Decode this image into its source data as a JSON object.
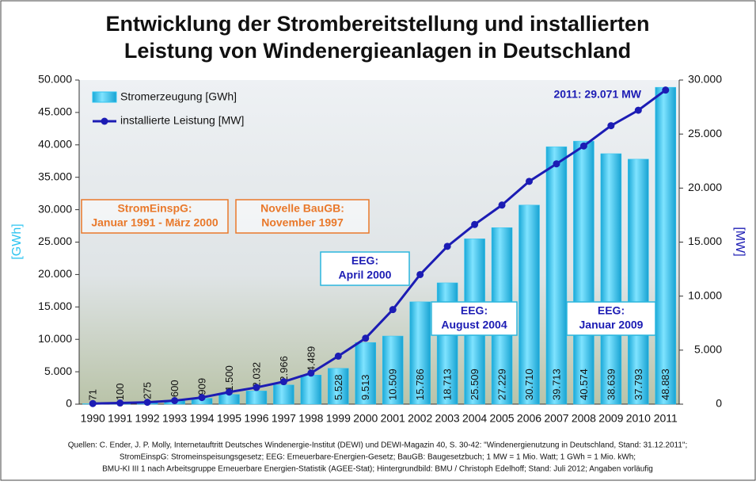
{
  "chart_data": {
    "type": "bar-line",
    "title_lines": [
      "Entwicklung der Strombereitstellung und installierten",
      "Leistung von Windenergieanlagen in Deutschland"
    ],
    "y_label": "[GWh]",
    "y2_label": "[MW]",
    "categories": [
      "1990",
      "1991",
      "1992",
      "1993",
      "1994",
      "1995",
      "1996",
      "1997",
      "1998",
      "1999",
      "2000",
      "2001",
      "2002",
      "2003",
      "2004",
      "2005",
      "2006",
      "2007",
      "2008",
      "2009",
      "2010",
      "2011"
    ],
    "series": [
      {
        "name": "Stromerzeugung [GWh]",
        "type": "bar",
        "color": "#2ec4f0",
        "values": [
          71,
          100,
          275,
          600,
          909,
          1500,
          2032,
          2966,
          4489,
          5528,
          9513,
          10509,
          15786,
          18713,
          25509,
          27229,
          30710,
          39713,
          40574,
          38639,
          37793,
          48883
        ],
        "value_labels": [
          "71",
          "100",
          "275",
          "600",
          "909",
          "1.500",
          "2.032",
          "2.966",
          "4.489",
          "5.528",
          "9.513",
          "10.509",
          "15.786",
          "18.713",
          "25.509",
          "27.229",
          "30.710",
          "39.713",
          "40.574",
          "38.639",
          "37.793",
          "48.883"
        ]
      },
      {
        "name": "installierte Leistung [MW]",
        "type": "line",
        "axis": "y2",
        "color": "#1c1cb4",
        "values": [
          56,
          106,
          174,
          326,
          618,
          1121,
          1546,
          2081,
          2875,
          4444,
          6104,
          8754,
          11994,
          14609,
          16629,
          18428,
          20622,
          22247,
          23897,
          25777,
          27204,
          29071
        ]
      }
    ],
    "ylim": [
      0,
      50000
    ],
    "yticks": [
      0,
      {
        "value": 5000,
        "label": "5.000"
      },
      {
        "value": 10000,
        "label": "10.000"
      },
      {
        "value": 15000,
        "label": "15.000"
      },
      {
        "value": 20000,
        "label": "20.000"
      },
      {
        "value": 25000,
        "label": "25.000"
      },
      {
        "value": 30000,
        "label": "30.000"
      },
      {
        "value": 35000,
        "label": "35.000"
      },
      {
        "value": 40000,
        "label": "40.000"
      },
      {
        "value": 45000,
        "label": "45.000"
      },
      {
        "value": 50000,
        "label": "50.000"
      }
    ],
    "y2lim": [
      0,
      30000
    ],
    "y2ticks": [
      0,
      {
        "value": 5000,
        "label": "5.000"
      },
      {
        "value": 10000,
        "label": "10.000"
      },
      {
        "value": 15000,
        "label": "15.000"
      },
      {
        "value": 20000,
        "label": "20.000"
      },
      {
        "value": 25000,
        "label": "25.000"
      },
      {
        "value": 30000,
        "label": "30.000"
      }
    ],
    "annotations": [
      {
        "lines": [
          "2011: 29.071 MW"
        ],
        "style": "plain"
      },
      {
        "lines": [
          "StromEinspG:",
          "Januar 1991 - März 2000"
        ],
        "style": "orange"
      },
      {
        "lines": [
          "Novelle BauGB:",
          "November 1997"
        ],
        "style": "orange"
      },
      {
        "lines": [
          "EEG:",
          "April 2000"
        ],
        "style": "blue"
      },
      {
        "lines": [
          "EEG:",
          "August 2004"
        ],
        "style": "blue"
      },
      {
        "lines": [
          "EEG:",
          "Januar 2009"
        ],
        "style": "blue"
      }
    ],
    "source_lines": [
      "Quellen: C. Ender, J. P. Molly, Internetauftritt Deutsches Windenergie-Institut (DEWI) und DEWI-Magazin 40, S. 30-42: \"Windenergienutzung in Deutschland, Stand: 31.12.2011\";",
      "StromEinspG: Stromeinspeisungsgesetz; EEG: Erneuerbare-Energien-Gesetz; BauGB: Baugesetzbuch; 1 MW = 1 Mio. Watt; 1 GWh = 1 Mio. kWh;",
      "BMU-KI III 1 nach Arbeitsgruppe Erneuerbare Energien-Statistik (AGEE-Stat); Hintergrundbild: BMU / Christoph Edelhoff; Stand: Juli 2012; Angaben vorläufig"
    ]
  }
}
